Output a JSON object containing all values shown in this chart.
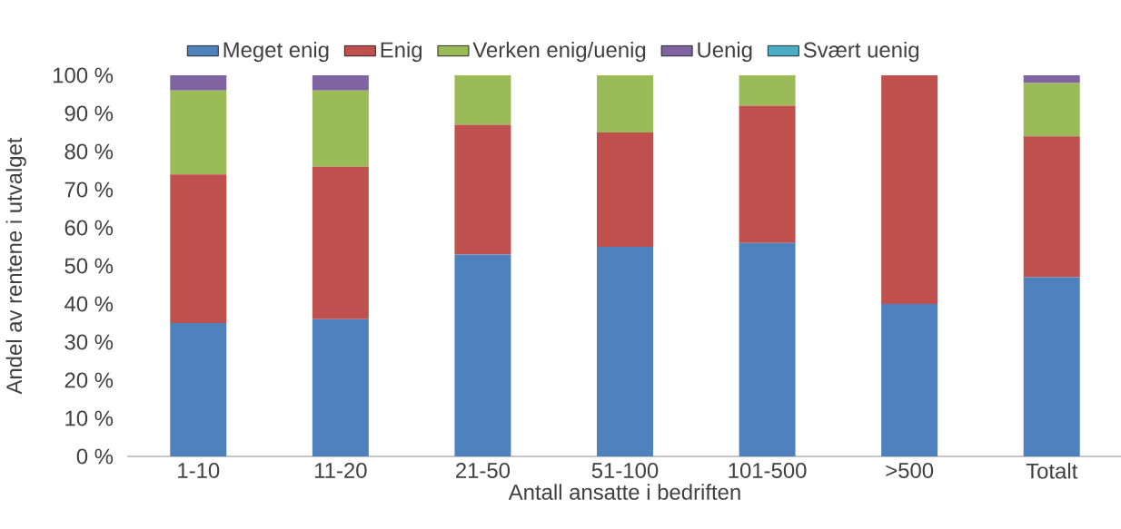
{
  "chart_data": {
    "type": "bar",
    "stacked": true,
    "xlabel": "Antall ansatte i bedriften",
    "ylabel": "Andel av rentene i utvalget",
    "categories": [
      "1-10",
      "11-20",
      "21-50",
      "51-100",
      "101-500",
      ">500",
      "Totalt"
    ],
    "series": [
      {
        "name": "Meget enig",
        "color": "#4f81bd",
        "values": [
          35,
          36,
          53,
          55,
          56,
          40,
          47
        ]
      },
      {
        "name": "Enig",
        "color": "#c0504d",
        "values": [
          39,
          40,
          34,
          30,
          36,
          60,
          37
        ]
      },
      {
        "name": "Verken enig/uenig",
        "color": "#9bbb59",
        "values": [
          22,
          20,
          13,
          15,
          8,
          0,
          14
        ]
      },
      {
        "name": "Uenig",
        "color": "#8064a2",
        "values": [
          4,
          4,
          0,
          0,
          0,
          0,
          2
        ]
      },
      {
        "name": "Svært uenig",
        "color": "#4bacc6",
        "values": [
          0,
          0,
          0,
          0,
          0,
          0,
          0
        ]
      }
    ],
    "ylim": [
      0,
      100
    ],
    "yticks": [
      {
        "value": 0,
        "label": "0 %"
      },
      {
        "value": 10,
        "label": "10 %"
      },
      {
        "value": 20,
        "label": "20 %"
      },
      {
        "value": 30,
        "label": "30 %"
      },
      {
        "value": 40,
        "label": "40 %"
      },
      {
        "value": 50,
        "label": "50 %"
      },
      {
        "value": 60,
        "label": "60 %"
      },
      {
        "value": 70,
        "label": "70 %"
      },
      {
        "value": 80,
        "label": "80 %"
      },
      {
        "value": 90,
        "label": "90 %"
      },
      {
        "value": 100,
        "label": "100 %"
      }
    ],
    "legend": "top"
  }
}
